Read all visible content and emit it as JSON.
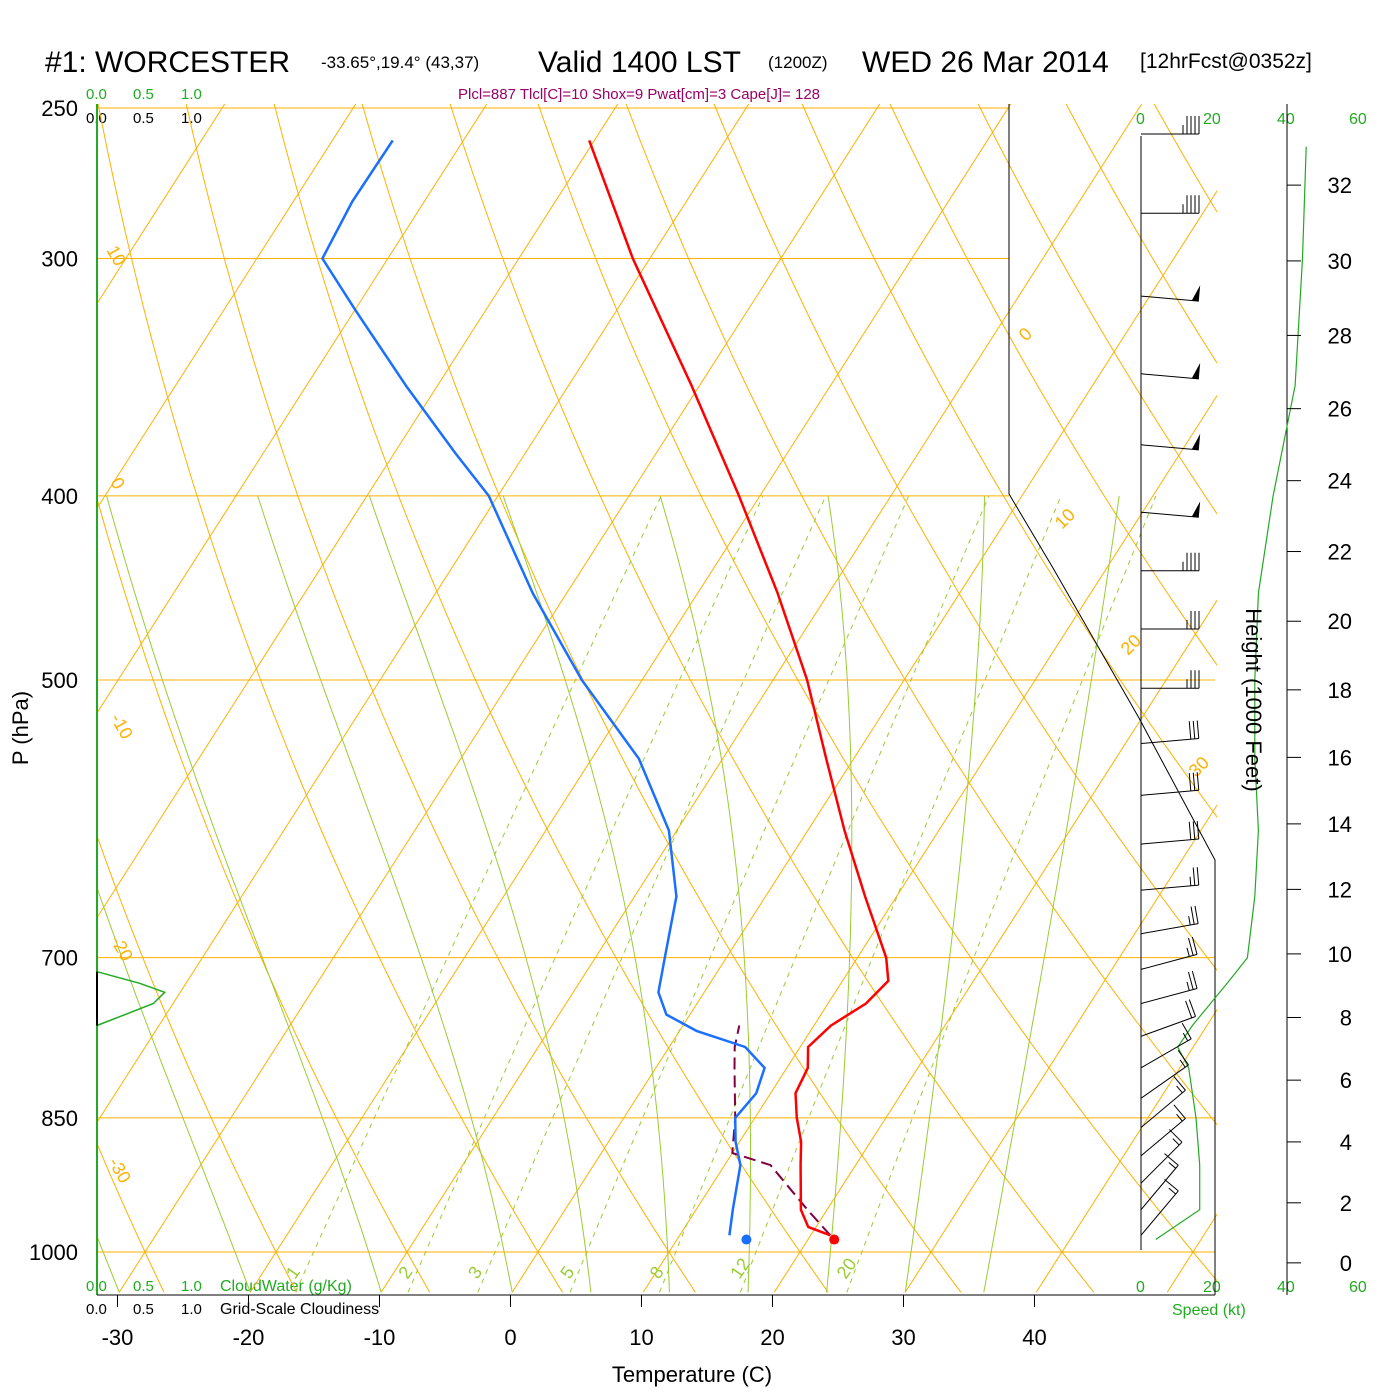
{
  "header": {
    "station": "#1: WORCESTER",
    "coords": "-33.65°,19.4° (43,37)",
    "valid": "Valid 1400 LST",
    "utc": "(1200Z)",
    "date": "WED 26 Mar 2014",
    "forecast": "[12hrFcst@0352z]",
    "indices": "Plcl=887 Tlcl[C]=10 Shox=9 Pwat[cm]=3 Cape[J]= 128"
  },
  "colors": {
    "temperature": "#ff0000",
    "dewpoint": "#1a6fff",
    "parcel": "#800040",
    "isotherm": "#ffb000",
    "adiabat": "#99cc33",
    "mixing_ratio": "#99cc33",
    "green_text": "#22aa22",
    "index_text": "#990066"
  },
  "chart_data": {
    "type": "skew-t",
    "title": "#1: WORCESTER  Valid 1400 LST (1200Z) WED 26 Mar 2014",
    "xlabel": "Temperature (C)",
    "ylabel": "P (hPa)",
    "right_axis_label": "Height (1000 Feet)",
    "x_ticks": [
      "-30",
      "-20",
      "-10",
      "0",
      "10",
      "20",
      "30",
      "40"
    ],
    "y_ticks": [
      "250",
      "300",
      "400",
      "500",
      "700",
      "850",
      "1000"
    ],
    "height_ticks": [
      "0",
      "2",
      "4",
      "6",
      "8",
      "10",
      "12",
      "14",
      "16",
      "18",
      "20",
      "22",
      "24",
      "26",
      "28",
      "30",
      "32"
    ],
    "cloud_scale": {
      "top_green": [
        "0.0",
        "0.5",
        "1.0"
      ],
      "top_black": [
        "0.0",
        "0.5",
        "1.0"
      ],
      "bottom_green": [
        "0.0",
        "0.5",
        "1.0"
      ],
      "bottom_black": [
        "0.0",
        "0.5",
        "1.0"
      ],
      "cloudwater_label": "CloudWater (g/Kg)",
      "cloudiness_label": "Grid-Scale Cloudiness"
    },
    "speed_scale": {
      "top": [
        "0",
        "20",
        "40",
        "60"
      ],
      "bottom": [
        "0",
        "20",
        "40",
        "60"
      ],
      "label": "Speed (kt)"
    },
    "isotherm_labels": [
      "10",
      "0",
      "-10",
      "-20",
      "-30",
      "0",
      "10",
      "20",
      "30"
    ],
    "mixing_ratio_labels": [
      "1",
      "2",
      "3",
      "5",
      "8",
      "12",
      "20"
    ],
    "temperature_profile": [
      {
        "p": 980,
        "t": 21.5
      },
      {
        "p": 970,
        "t": 19.4
      },
      {
        "p": 950,
        "t": 18.0
      },
      {
        "p": 900,
        "t": 15.8
      },
      {
        "p": 875,
        "t": 14.7
      },
      {
        "p": 850,
        "t": 13.2
      },
      {
        "p": 825,
        "t": 11.9
      },
      {
        "p": 800,
        "t": 11.6
      },
      {
        "p": 780,
        "t": 10.6
      },
      {
        "p": 760,
        "t": 11.3
      },
      {
        "p": 740,
        "t": 12.9
      },
      {
        "p": 720,
        "t": 13.5
      },
      {
        "p": 700,
        "t": 12.2
      },
      {
        "p": 650,
        "t": 7.6
      },
      {
        "p": 600,
        "t": 2.8
      },
      {
        "p": 550,
        "t": -2.1
      },
      {
        "p": 500,
        "t": -7.4
      },
      {
        "p": 450,
        "t": -13.9
      },
      {
        "p": 400,
        "t": -21.6
      },
      {
        "p": 350,
        "t": -30.6
      },
      {
        "p": 300,
        "t": -41.3
      },
      {
        "p": 260,
        "t": -50.4
      }
    ],
    "dewpoint_profile": [
      {
        "p": 980,
        "t": 13.8
      },
      {
        "p": 950,
        "t": 12.8
      },
      {
        "p": 900,
        "t": 11.2
      },
      {
        "p": 875,
        "t": 9.7
      },
      {
        "p": 850,
        "t": 8.5
      },
      {
        "p": 825,
        "t": 8.9
      },
      {
        "p": 800,
        "t": 8.3
      },
      {
        "p": 780,
        "t": 5.8
      },
      {
        "p": 765,
        "t": 1.3
      },
      {
        "p": 750,
        "t": -1.8
      },
      {
        "p": 730,
        "t": -3.5
      },
      {
        "p": 700,
        "t": -4.7
      },
      {
        "p": 650,
        "t": -6.8
      },
      {
        "p": 600,
        "t": -10.6
      },
      {
        "p": 550,
        "t": -16.4
      },
      {
        "p": 500,
        "t": -24.6
      },
      {
        "p": 450,
        "t": -32.6
      },
      {
        "p": 400,
        "t": -40.7
      },
      {
        "p": 380,
        "t": -45.3
      },
      {
        "p": 350,
        "t": -52.4
      },
      {
        "p": 320,
        "t": -59.8
      },
      {
        "p": 300,
        "t": -65.0
      },
      {
        "p": 280,
        "t": -65.5
      },
      {
        "p": 260,
        "t": -65.4
      }
    ],
    "parcel_profile": [
      {
        "p": 980,
        "t": 21.5
      },
      {
        "p": 950,
        "t": 18.5
      },
      {
        "p": 900,
        "t": 13.5
      },
      {
        "p": 887,
        "t": 10.0
      },
      {
        "p": 850,
        "t": 8.5
      },
      {
        "p": 800,
        "t": 6.0
      },
      {
        "p": 780,
        "t": 5.0
      },
      {
        "p": 760,
        "t": 4.3
      }
    ],
    "surface": {
      "t": 22.0,
      "td": 15.3,
      "p": 985
    },
    "mixing_ratio_values": [
      1,
      2,
      3,
      5,
      8,
      12,
      20
    ],
    "wind_barbs": [
      {
        "p": 258,
        "dir": 270,
        "kt": 45
      },
      {
        "p": 284,
        "dir": 270,
        "kt": 45
      },
      {
        "p": 314,
        "dir": 265,
        "kt": 50
      },
      {
        "p": 345,
        "dir": 265,
        "kt": 50
      },
      {
        "p": 376,
        "dir": 265,
        "kt": 50
      },
      {
        "p": 408,
        "dir": 265,
        "kt": 50
      },
      {
        "p": 438,
        "dir": 270,
        "kt": 45
      },
      {
        "p": 470,
        "dir": 270,
        "kt": 35
      },
      {
        "p": 505,
        "dir": 270,
        "kt": 35
      },
      {
        "p": 540,
        "dir": 275,
        "kt": 30
      },
      {
        "p": 575,
        "dir": 275,
        "kt": 30
      },
      {
        "p": 610,
        "dir": 275,
        "kt": 30
      },
      {
        "p": 645,
        "dir": 275,
        "kt": 25
      },
      {
        "p": 680,
        "dir": 280,
        "kt": 25
      },
      {
        "p": 710,
        "dir": 285,
        "kt": 25
      },
      {
        "p": 740,
        "dir": 285,
        "kt": 25
      },
      {
        "p": 770,
        "dir": 290,
        "kt": 20
      },
      {
        "p": 800,
        "dir": 300,
        "kt": 15
      },
      {
        "p": 830,
        "dir": 305,
        "kt": 15
      },
      {
        "p": 860,
        "dir": 310,
        "kt": 15
      },
      {
        "p": 890,
        "dir": 310,
        "kt": 15
      },
      {
        "p": 920,
        "dir": 315,
        "kt": 15
      },
      {
        "p": 950,
        "dir": 320,
        "kt": 15
      },
      {
        "p": 980,
        "dir": 320,
        "kt": 15
      }
    ],
    "wind_speed_profile": [
      {
        "p": 985,
        "kt": 4
      },
      {
        "p": 950,
        "kt": 16
      },
      {
        "p": 900,
        "kt": 16
      },
      {
        "p": 850,
        "kt": 15
      },
      {
        "p": 800,
        "kt": 13
      },
      {
        "p": 780,
        "kt": 10
      },
      {
        "p": 760,
        "kt": 14
      },
      {
        "p": 720,
        "kt": 24
      },
      {
        "p": 700,
        "kt": 29
      },
      {
        "p": 650,
        "kt": 31
      },
      {
        "p": 600,
        "kt": 32
      },
      {
        "p": 550,
        "kt": 31
      },
      {
        "p": 500,
        "kt": 31
      },
      {
        "p": 450,
        "kt": 32
      },
      {
        "p": 400,
        "kt": 36
      },
      {
        "p": 350,
        "kt": 42
      },
      {
        "p": 300,
        "kt": 44
      },
      {
        "p": 262,
        "kt": 45
      }
    ],
    "cloudwater_profile": [
      {
        "p": 760,
        "v": 0.0
      },
      {
        "p": 740,
        "v": 0.6
      },
      {
        "p": 730,
        "v": 0.72
      },
      {
        "p": 722,
        "v": 0.45
      },
      {
        "p": 712,
        "v": 0.0
      }
    ]
  }
}
